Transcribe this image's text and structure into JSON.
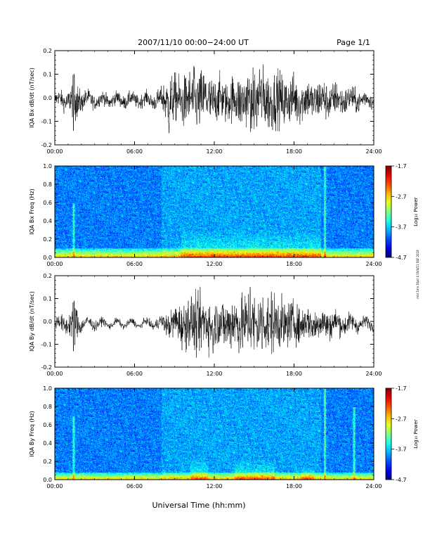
{
  "header": {
    "title": "2007/11/10  00:00−24:00 UT",
    "page": "Page 1/1"
  },
  "xlabel": "Universal Time (hh:mm)",
  "side_note": "mid 1mn 1fprt 4 10/4/11 SSF 2019",
  "x_ticks": [
    "00:00",
    "06:00",
    "12:00",
    "18:00",
    "24:00"
  ],
  "colorbar": {
    "label": "Log₁₀ Power",
    "ticks": [
      "-1.7",
      "-2.7",
      "-3.7",
      "-4.7"
    ],
    "range": [
      -4.7,
      -1.7
    ]
  },
  "chart_data": [
    {
      "type": "line",
      "ylabel": "IQA Bx dB/dt (nT/sec)",
      "ylim": [
        -0.2,
        0.2
      ],
      "y_ticks": [
        "0.2",
        "0.1",
        "0.0",
        "-0.1",
        "-0.2"
      ],
      "xlim_hours": [
        0,
        24
      ],
      "envelope": {
        "x_hours": [
          0,
          1,
          1.5,
          2,
          3,
          4,
          5,
          6,
          7,
          8,
          8.5,
          9,
          10,
          11,
          12,
          13,
          14,
          15,
          16,
          17,
          18,
          19,
          20,
          21,
          22,
          23,
          24
        ],
        "amplitude": [
          0.02,
          0.03,
          0.07,
          0.03,
          0.02,
          0.02,
          0.02,
          0.02,
          0.02,
          0.03,
          0.08,
          0.07,
          0.08,
          0.09,
          0.07,
          0.06,
          0.08,
          0.09,
          0.09,
          0.08,
          0.07,
          0.06,
          0.06,
          0.05,
          0.04,
          0.03,
          0.02
        ],
        "spikes": [
          {
            "x": 1.4,
            "y": -0.14
          },
          {
            "x": 1.45,
            "y": 0.1
          },
          {
            "x": 8.6,
            "y": -0.15
          },
          {
            "x": 10.5,
            "y": 0.13
          },
          {
            "x": 14.8,
            "y": -0.13
          },
          {
            "x": 15.4,
            "y": 0.12
          }
        ]
      }
    },
    {
      "type": "heatmap",
      "ylabel": "IQA Bx Freq (Hz)",
      "ylim": [
        0.0,
        1.0
      ],
      "y_ticks": [
        "1.0",
        "0.8",
        "0.6",
        "0.4",
        "0.2",
        "0.0"
      ],
      "value_range": [
        -4.7,
        -1.7
      ],
      "features": {
        "low_freq_band_max_hz": 0.1,
        "bursts": [
          {
            "t_hours": 1.4,
            "f_max": 0.6
          },
          {
            "t_hours": 20.3,
            "f_max": 1.0
          }
        ],
        "enhanced_intervals": [
          {
            "t0": 9.5,
            "t1": 20,
            "f_max": 0.3
          }
        ]
      }
    },
    {
      "type": "line",
      "ylabel": "IQA By dB/dt (nT/sec)",
      "ylim": [
        -0.2,
        0.2
      ],
      "y_ticks": [
        "0.2",
        "0.1",
        "0.0",
        "-0.1",
        "-0.2"
      ],
      "xlim_hours": [
        0,
        24
      ],
      "envelope": {
        "x_hours": [
          0,
          1,
          1.5,
          2,
          3,
          4,
          5,
          6,
          7,
          8,
          9,
          10,
          11,
          12,
          13,
          14,
          15,
          16,
          17,
          18,
          19,
          20,
          21,
          22,
          23,
          24
        ],
        "amplitude": [
          0.02,
          0.03,
          0.07,
          0.02,
          0.015,
          0.01,
          0.01,
          0.01,
          0.01,
          0.02,
          0.05,
          0.08,
          0.09,
          0.07,
          0.08,
          0.09,
          0.1,
          0.09,
          0.08,
          0.06,
          0.05,
          0.05,
          0.04,
          0.03,
          0.02,
          0.015
        ],
        "spikes": [
          {
            "x": 1.4,
            "y": -0.13
          },
          {
            "x": 1.45,
            "y": 0.09
          },
          {
            "x": 11.9,
            "y": -0.14
          },
          {
            "x": 14.7,
            "y": 0.15
          },
          {
            "x": 15.6,
            "y": -0.12
          },
          {
            "x": 16.3,
            "y": 0.13
          }
        ]
      }
    },
    {
      "type": "heatmap",
      "ylabel": "IQA By Freq (Hz)",
      "ylim": [
        0.0,
        1.0
      ],
      "y_ticks": [
        "1.0",
        "0.8",
        "0.6",
        "0.4",
        "0.2",
        "0.0"
      ],
      "value_range": [
        -4.7,
        -1.7
      ],
      "features": {
        "low_freq_band_max_hz": 0.08,
        "bursts": [
          {
            "t_hours": 1.4,
            "f_max": 0.7
          },
          {
            "t_hours": 20.3,
            "f_max": 1.0
          },
          {
            "t_hours": 22.5,
            "f_max": 0.8
          }
        ],
        "enhanced_intervals": [
          {
            "t0": 10.2,
            "t1": 11.5,
            "f_max": 0.25
          },
          {
            "t0": 13.5,
            "t1": 16.5,
            "f_max": 0.22
          },
          {
            "t0": 18.5,
            "t1": 19.5,
            "f_max": 0.15
          }
        ]
      }
    }
  ]
}
